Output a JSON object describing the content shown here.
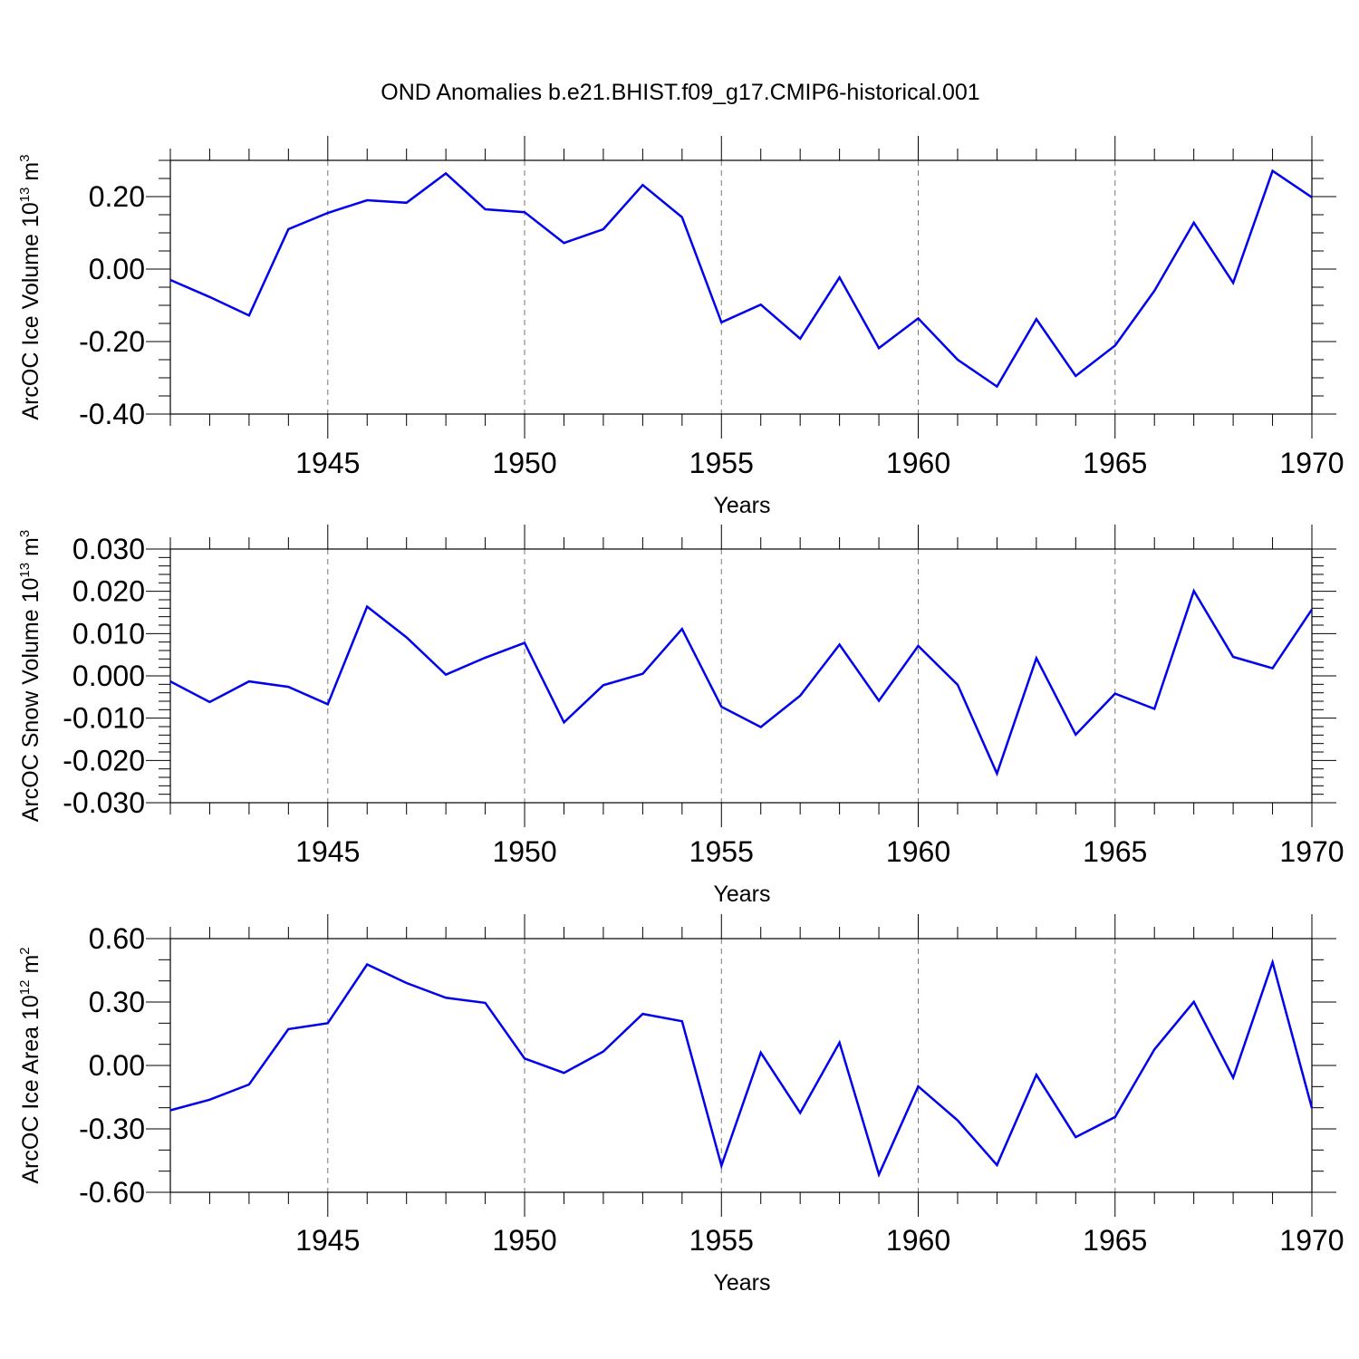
{
  "title": "OND Anomalies b.e21.BHIST.f09_g17.CMIP6-historical.001",
  "chart_data": [
    {
      "type": "line",
      "name": "ice-volume",
      "ylabel": "ArcOC Ice Volume 10",
      "ylabel_exp": "13",
      "ylabel_unit": " m",
      "ylabel_unit_exp": "3",
      "xlabel": "Years",
      "xlim": [
        1941,
        1970
      ],
      "ylim": [
        -0.4,
        0.3
      ],
      "xticks": [
        1945,
        1950,
        1955,
        1960,
        1965,
        1970
      ],
      "yticks": [
        -0.4,
        -0.2,
        0.0,
        0.2
      ],
      "ytick_labels": [
        "-0.40",
        "-0.20",
        "0.00",
        "0.20"
      ],
      "y_minor_step": 0.05,
      "color": "#0000ee",
      "x": [
        1941,
        1942,
        1943,
        1944,
        1945,
        1946,
        1947,
        1948,
        1949,
        1950,
        1951,
        1952,
        1953,
        1954,
        1955,
        1956,
        1957,
        1958,
        1959,
        1960,
        1961,
        1962,
        1963,
        1964,
        1965,
        1966,
        1967,
        1968,
        1969,
        1970
      ],
      "values": [
        -0.03,
        -0.077,
        -0.128,
        0.11,
        0.155,
        0.19,
        0.183,
        0.264,
        0.165,
        0.157,
        0.072,
        0.11,
        0.232,
        0.143,
        -0.147,
        -0.098,
        -0.192,
        -0.023,
        -0.218,
        -0.136,
        -0.25,
        -0.324,
        -0.138,
        -0.295,
        -0.211,
        -0.06,
        0.128,
        -0.038,
        0.271,
        0.198
      ]
    },
    {
      "type": "line",
      "name": "snow-volume",
      "ylabel": "ArcOC Snow Volume 10",
      "ylabel_exp": "13",
      "ylabel_unit": " m",
      "ylabel_unit_exp": "3",
      "xlabel": "Years",
      "xlim": [
        1941,
        1970
      ],
      "ylim": [
        -0.03,
        0.03
      ],
      "xticks": [
        1945,
        1950,
        1955,
        1960,
        1965,
        1970
      ],
      "yticks": [
        -0.03,
        -0.02,
        -0.01,
        0.0,
        0.01,
        0.02,
        0.03
      ],
      "ytick_labels": [
        "-0.030",
        "-0.020",
        "-0.010",
        "0.000",
        "0.010",
        "0.020",
        "0.030"
      ],
      "y_minor_step": 0.002,
      "color": "#0000ee",
      "x": [
        1941,
        1942,
        1943,
        1944,
        1945,
        1946,
        1947,
        1948,
        1949,
        1950,
        1951,
        1952,
        1953,
        1954,
        1955,
        1956,
        1957,
        1958,
        1959,
        1960,
        1961,
        1962,
        1963,
        1964,
        1965,
        1966,
        1967,
        1968,
        1969,
        1970
      ],
      "values": [
        -0.0013,
        -0.0062,
        -0.0013,
        -0.0026,
        -0.0067,
        0.0164,
        0.0091,
        0.0003,
        0.0043,
        0.0078,
        -0.011,
        -0.0022,
        0.0005,
        0.0111,
        -0.0073,
        -0.0121,
        -0.0047,
        0.0074,
        -0.0059,
        0.0071,
        -0.0021,
        -0.0231,
        0.0042,
        -0.0139,
        -0.0042,
        -0.0078,
        0.0201,
        0.0045,
        0.0018,
        0.0157
      ]
    },
    {
      "type": "line",
      "name": "ice-area",
      "ylabel": "ArcOC Ice Area 10",
      "ylabel_exp": "12",
      "ylabel_unit": " m",
      "ylabel_unit_exp": "2",
      "xlabel": "Years",
      "xlim": [
        1941,
        1970
      ],
      "ylim": [
        -0.6,
        0.6
      ],
      "xticks": [
        1945,
        1950,
        1955,
        1960,
        1965,
        1970
      ],
      "yticks": [
        -0.6,
        -0.3,
        0.0,
        0.3,
        0.6
      ],
      "ytick_labels": [
        "-0.60",
        "-0.30",
        "0.00",
        "0.30",
        "0.60"
      ],
      "y_minor_step": 0.1,
      "color": "#0000ee",
      "x": [
        1941,
        1942,
        1943,
        1944,
        1945,
        1946,
        1947,
        1948,
        1949,
        1950,
        1951,
        1952,
        1953,
        1954,
        1955,
        1956,
        1957,
        1958,
        1959,
        1960,
        1961,
        1962,
        1963,
        1964,
        1965,
        1966,
        1967,
        1968,
        1969,
        1970
      ],
      "values": [
        -0.212,
        -0.162,
        -0.09,
        0.172,
        0.2,
        0.478,
        0.39,
        0.32,
        0.296,
        0.033,
        -0.035,
        0.066,
        0.244,
        0.209,
        -0.474,
        0.061,
        -0.224,
        0.108,
        -0.516,
        -0.099,
        -0.26,
        -0.471,
        -0.044,
        -0.339,
        -0.244,
        0.076,
        0.301,
        -0.058,
        0.488,
        -0.202
      ]
    }
  ]
}
